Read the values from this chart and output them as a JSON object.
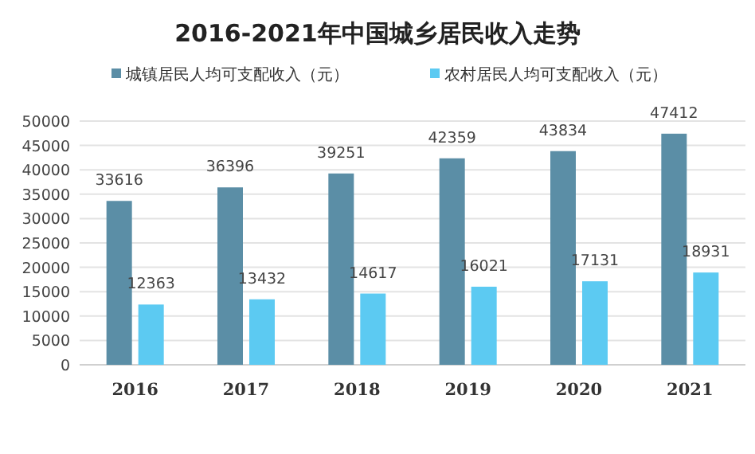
{
  "chart_data": {
    "type": "bar",
    "title": "2016-2021年中国城乡居民收入走势",
    "categories": [
      "2016",
      "2017",
      "2018",
      "2019",
      "2020",
      "2021"
    ],
    "series": [
      {
        "name": "城镇居民人均可支配收入（元）",
        "color": "#5b8ea6",
        "values": [
          33616,
          36396,
          39251,
          42359,
          43834,
          47412
        ]
      },
      {
        "name": "农村居民人均可支配收入（元）",
        "color": "#5ccaf2",
        "values": [
          12363,
          13432,
          14617,
          16021,
          17131,
          18931
        ]
      }
    ],
    "ylim": [
      0,
      50000
    ],
    "yticks": [
      0,
      5000,
      10000,
      15000,
      20000,
      25000,
      30000,
      35000,
      40000,
      45000,
      50000
    ],
    "grid": "y",
    "legend": "top",
    "data_labels": true
  }
}
